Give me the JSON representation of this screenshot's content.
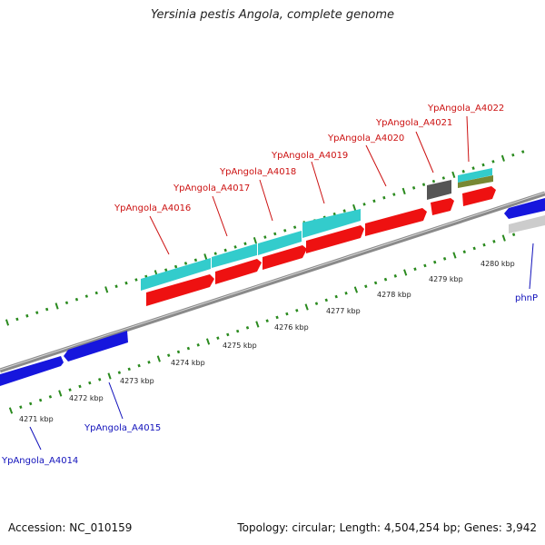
{
  "title": "Yersinia pestis Angola, complete genome",
  "footer": {
    "accession": "Accession: NC_010159",
    "summary": "Topology: circular; Length: 4,504,254 bp; Genes: 3,942"
  },
  "colors": {
    "background": "#ffffff",
    "backbone": "#8a8a8a",
    "tick": "#2a8a1e",
    "forward_gene": "#ee1111",
    "reverse_gene": "#1616dd",
    "forward_label": "#cc1111",
    "reverse_label": "#1111bb",
    "cds_feature": "#33cccc",
    "dark_feature": "#555555",
    "olive_feature": "#778833",
    "light_feature": "#cccccc"
  },
  "kbp_labels": [
    "4271 kbp",
    "4272 kbp",
    "4273 kbp",
    "4274 kbp",
    "4275 kbp",
    "4276 kbp",
    "4277 kbp",
    "4278 kbp",
    "4279 kbp",
    "4280 kbp"
  ],
  "forward_gene_labels": [
    "YpAngola_A4016",
    "YpAngola_A4017",
    "YpAngola_A4018",
    "YpAngola_A4019",
    "YpAngola_A4020",
    "YpAngola_A4021",
    "YpAngola_A4022"
  ],
  "reverse_gene_labels": [
    "YpAngola_A4014",
    "YpAngola_A4015",
    "phnP"
  ]
}
